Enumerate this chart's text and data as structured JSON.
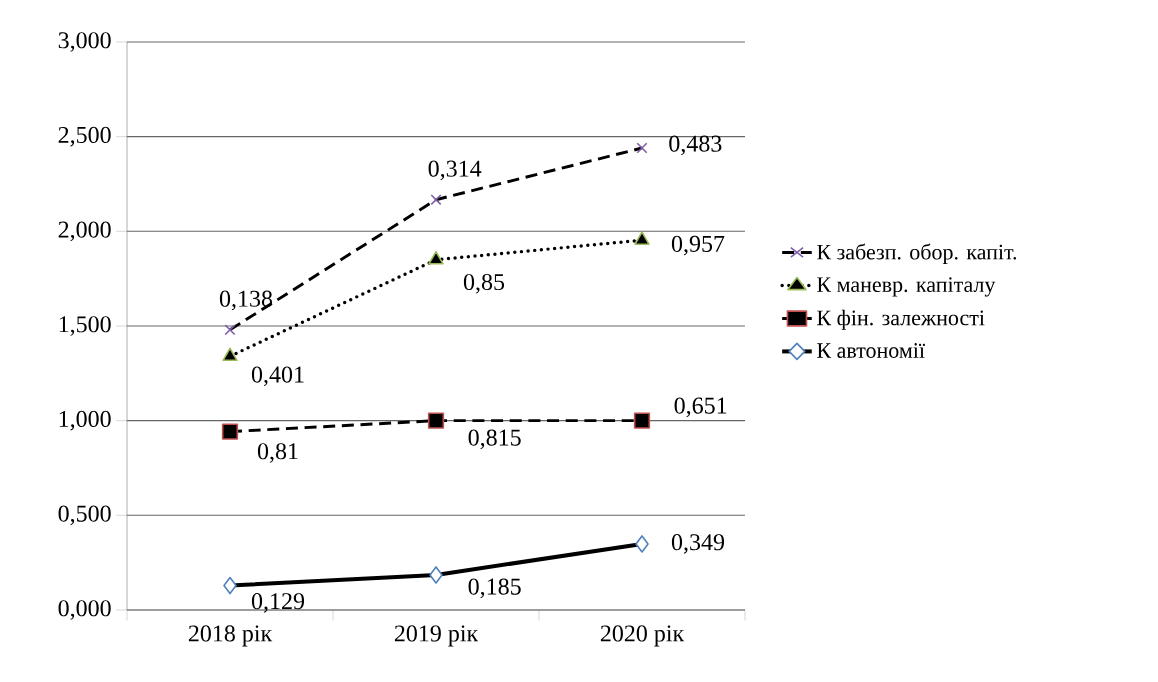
{
  "chart_data": {
    "type": "line",
    "categories": [
      "2018 рік",
      "2019 рік",
      "2020 рік"
    ],
    "series": [
      {
        "name": "К забезп. обор. капіт.",
        "color": "#7f60a8",
        "marker": "cross",
        "line_style": "dashed",
        "values": [
          1.48,
          2.167,
          2.44
        ]
      },
      {
        "name": "К маневр. капіталу",
        "color": "#9bbb59",
        "marker": "triangle",
        "line_style": "dotted",
        "values": [
          1.34,
          1.85,
          1.953
        ]
      },
      {
        "name": "К фін. залежності",
        "color": "#c0504d",
        "marker": "square",
        "line_style": "dashed",
        "values": [
          0.942,
          1.0,
          1.0
        ]
      },
      {
        "name": "К автономії",
        "color": "#4f81bd",
        "marker": "diamond",
        "line_style": "solid",
        "values": [
          0.129,
          0.185,
          0.349
        ],
        "value_labels": [
          "0,129",
          "0,185",
          "0,349"
        ]
      }
    ],
    "annotations": [
      {
        "text": "0,138",
        "x": "2018 рік",
        "y": 1.48
      },
      {
        "text": "0,314",
        "x": "2019 рік",
        "y": 2.167
      },
      {
        "text": "0,483",
        "x": "2020 рік",
        "y": 2.44
      },
      {
        "text": "0,401",
        "x": "2018 рік",
        "y": 1.34
      },
      {
        "text": "0,85",
        "x": "2019 рік",
        "y": 1.85
      },
      {
        "text": "0,957",
        "x": "2020 рік",
        "y": 1.953
      },
      {
        "text": "0,81",
        "x": "2018 рік",
        "y": 0.942
      },
      {
        "text": "0,815",
        "x": "2019 рік",
        "y": 1.0
      },
      {
        "text": "0,651",
        "x": "2020 рік",
        "y": 1.0
      }
    ],
    "ylim": [
      0,
      3
    ],
    "yticks": [
      {
        "value": 0,
        "label": "0,000"
      },
      {
        "value": 0.5,
        "label": "0,500"
      },
      {
        "value": 1,
        "label": "1,000"
      },
      {
        "value": 1.5,
        "label": "1,500"
      },
      {
        "value": 2,
        "label": "2,000"
      },
      {
        "value": 2.5,
        "label": "2,500"
      },
      {
        "value": 3,
        "label": "3,000"
      }
    ],
    "grid": "y",
    "legend": "right"
  }
}
